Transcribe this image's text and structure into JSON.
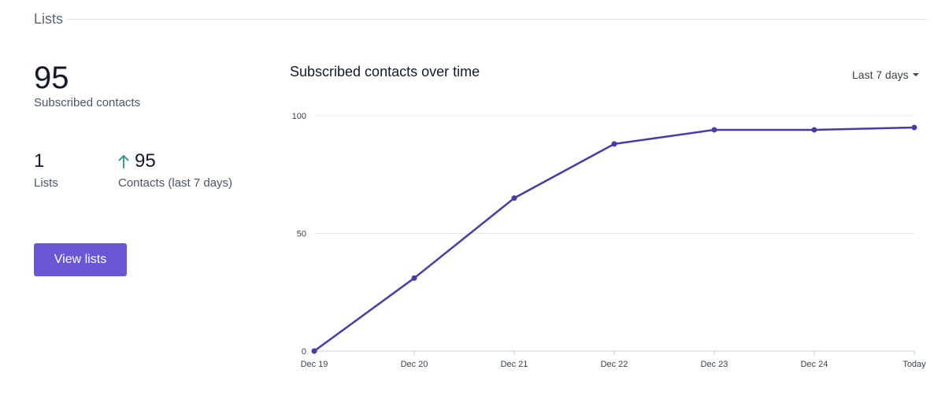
{
  "section": {
    "title": "Lists"
  },
  "stats": {
    "subscribed_value": "95",
    "subscribed_label": "Subscribed contacts",
    "lists_value": "1",
    "lists_label": "Lists",
    "contacts_value": "95",
    "contacts_label": "Contacts (last 7 days)"
  },
  "actions": {
    "view_lists_label": "View lists"
  },
  "chart": {
    "title": "Subscribed contacts over time",
    "range_label": "Last 7 days"
  },
  "colors": {
    "accent": "#6b56d6",
    "line": "#4a3aa8",
    "trend_up": "#3b9a8a",
    "grid": "#e6e8ec"
  },
  "icons": {
    "trend": "up-arrow-icon",
    "dropdown": "caret-icon"
  },
  "chart_data": {
    "type": "line",
    "title": "Subscribed contacts over time",
    "categories": [
      "Dec 19",
      "Dec 20",
      "Dec 21",
      "Dec 22",
      "Dec 23",
      "Dec 24",
      "Today"
    ],
    "series": [
      {
        "name": "Subscribed contacts",
        "values": [
          0,
          31,
          65,
          88,
          94,
          94,
          95
        ]
      }
    ],
    "y_ticks": [
      0,
      50,
      100
    ],
    "ylim": [
      0,
      100
    ],
    "xlabel": "",
    "ylabel": "",
    "grid": true
  }
}
